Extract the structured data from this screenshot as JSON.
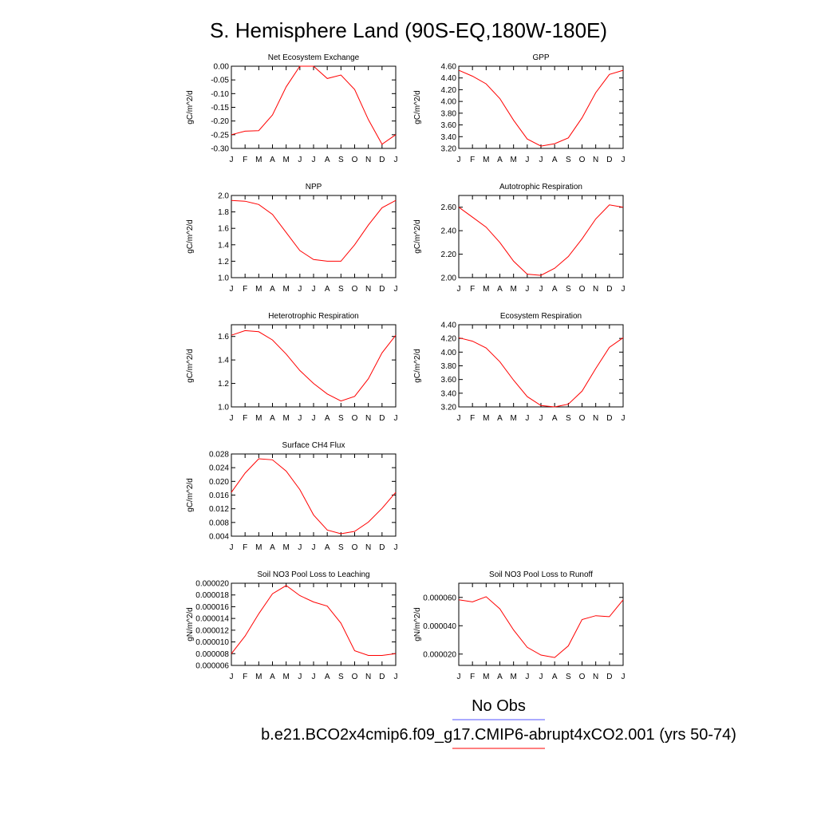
{
  "title": "S. Hemisphere Land (90S-EQ,180W-180E)",
  "months": [
    "J",
    "F",
    "M",
    "A",
    "M",
    "J",
    "J",
    "A",
    "S",
    "O",
    "N",
    "D",
    "J"
  ],
  "legend": [
    {
      "label": "No Obs",
      "color": "#5555ff"
    },
    {
      "label": "b.e21.BCO2x4cmip6.f09_g17.CMIP6-abrupt4xCO2.001 (yrs 50-74)",
      "color": "#ff0000"
    }
  ],
  "colors": {
    "series": "#ff0000",
    "axis": "#000000"
  },
  "chart_data": [
    {
      "type": "line",
      "title": "Net Ecosystem Exchange",
      "ylabel": "gC/m^2/d",
      "ylim": [
        -0.3,
        0.0
      ],
      "yticks": [
        0.0,
        -0.05,
        -0.1,
        -0.15,
        -0.2,
        -0.25,
        -0.3
      ],
      "yticklabels": [
        "0.00",
        "-0.05",
        "-0.10",
        "-0.15",
        "-0.20",
        "-0.25",
        "-0.30"
      ],
      "values": [
        -0.25,
        -0.237,
        -0.235,
        -0.178,
        -0.075,
        0.0,
        0.0,
        -0.045,
        -0.032,
        -0.085,
        -0.195,
        -0.285,
        -0.25
      ]
    },
    {
      "type": "line",
      "title": "GPP",
      "ylabel": "gC/m^2/d",
      "ylim": [
        3.2,
        4.6
      ],
      "yticks": [
        4.6,
        4.4,
        4.2,
        4.0,
        3.8,
        3.6,
        3.4,
        3.2
      ],
      "yticklabels": [
        "4.60",
        "4.40",
        "4.20",
        "4.00",
        "3.80",
        "3.60",
        "3.40",
        "3.20"
      ],
      "values": [
        4.53,
        4.43,
        4.3,
        4.05,
        3.68,
        3.36,
        3.24,
        3.28,
        3.38,
        3.72,
        4.15,
        4.46,
        4.53
      ]
    },
    {
      "type": "line",
      "title": "NPP",
      "ylabel": "gC/m^2/d",
      "ylim": [
        1.0,
        2.0
      ],
      "yticks": [
        2.0,
        1.8,
        1.6,
        1.4,
        1.2,
        1.0
      ],
      "yticklabels": [
        "2.0",
        "1.8",
        "1.6",
        "1.4",
        "1.2",
        "1.0"
      ],
      "values": [
        1.94,
        1.93,
        1.89,
        1.77,
        1.55,
        1.33,
        1.22,
        1.2,
        1.2,
        1.4,
        1.64,
        1.85,
        1.94
      ]
    },
    {
      "type": "line",
      "title": "Autotrophic Respiration",
      "ylabel": "gC/m^2/d",
      "ylim": [
        2.0,
        2.7
      ],
      "yticks": [
        2.6,
        2.4,
        2.2,
        2.0
      ],
      "yticklabels": [
        "2.60",
        "2.40",
        "2.20",
        "2.00"
      ],
      "values": [
        2.6,
        2.515,
        2.43,
        2.3,
        2.14,
        2.03,
        2.02,
        2.08,
        2.18,
        2.33,
        2.5,
        2.62,
        2.6
      ]
    },
    {
      "type": "line",
      "title": "Heterotrophic Respiration",
      "ylabel": "gC/m^2/d",
      "ylim": [
        1.0,
        1.7
      ],
      "yticks": [
        1.6,
        1.4,
        1.2,
        1.0
      ],
      "yticklabels": [
        "1.6",
        "1.4",
        "1.2",
        "1.0"
      ],
      "values": [
        1.61,
        1.65,
        1.64,
        1.57,
        1.45,
        1.31,
        1.2,
        1.11,
        1.05,
        1.09,
        1.24,
        1.46,
        1.61
      ]
    },
    {
      "type": "line",
      "title": "Ecosystem Respiration",
      "ylabel": "gC/m^2/d",
      "ylim": [
        3.2,
        4.4
      ],
      "yticks": [
        4.4,
        4.2,
        4.0,
        3.8,
        3.6,
        3.4,
        3.2
      ],
      "yticklabels": [
        "4.40",
        "4.20",
        "4.00",
        "3.80",
        "3.60",
        "3.40",
        "3.20"
      ],
      "values": [
        4.21,
        4.16,
        4.06,
        3.86,
        3.59,
        3.35,
        3.22,
        3.2,
        3.24,
        3.43,
        3.76,
        4.07,
        4.21
      ]
    },
    {
      "type": "line",
      "title": "Surface CH4 Flux",
      "ylabel": "gC/m^2/d",
      "ylim": [
        0.004,
        0.028
      ],
      "yticks": [
        0.028,
        0.024,
        0.02,
        0.016,
        0.012,
        0.008,
        0.004
      ],
      "yticklabels": [
        "0.028",
        "0.024",
        "0.020",
        "0.016",
        "0.012",
        "0.008",
        "0.004"
      ],
      "values": [
        0.0168,
        0.0224,
        0.0266,
        0.0263,
        0.023,
        0.0176,
        0.0102,
        0.0058,
        0.0047,
        0.0054,
        0.0081,
        0.0121,
        0.0168
      ]
    },
    {
      "type": "line",
      "title": "Soil NO3 Pool Loss to Leaching",
      "ylabel": "gN/m^2/d",
      "ylim": [
        6e-06,
        2e-05
      ],
      "yticks": [
        2e-05,
        1.8e-05,
        1.6e-05,
        1.4e-05,
        1.2e-05,
        1e-05,
        8e-06,
        6e-06
      ],
      "yticklabels": [
        "0.000020",
        "0.000018",
        "0.000016",
        "0.000014",
        "0.000012",
        "0.000010",
        "0.000008",
        "0.000006"
      ],
      "values": [
        8e-06,
        1.1e-05,
        1.48e-05,
        1.82e-05,
        1.96e-05,
        1.79e-05,
        1.68e-05,
        1.61e-05,
        1.32e-05,
        8.5e-06,
        7.7e-06,
        7.7e-06,
        8e-06
      ]
    },
    {
      "type": "line",
      "title": "Soil NO3 Pool Loss to Runoff",
      "ylabel": "gN/m^2/d",
      "ylim": [
        1.2e-05,
        7e-05
      ],
      "yticks": [
        6e-05,
        4e-05,
        2e-05
      ],
      "yticklabels": [
        "0.000060",
        "0.000040",
        "0.000020"
      ],
      "values": [
        5.83e-05,
        5.68e-05,
        6.05e-05,
        5.19e-05,
        3.7e-05,
        2.48e-05,
        1.93e-05,
        1.76e-05,
        2.58e-05,
        4.44e-05,
        4.71e-05,
        4.64e-05,
        5.83e-05
      ]
    }
  ]
}
